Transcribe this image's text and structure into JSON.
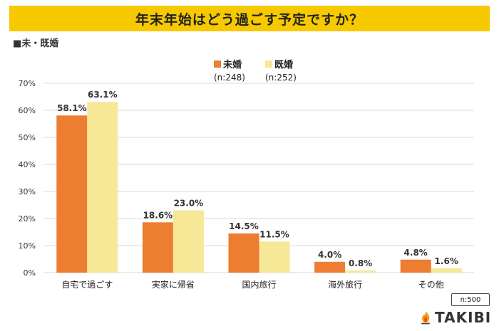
{
  "title": "年末年始はどう過ごす予定ですか？",
  "subtitle": "■未・既婚",
  "sample_note": "n:500",
  "brand": "TAKIBI",
  "colors": {
    "title_bg": "#f6c900",
    "series_unmarried": "#ed7d31",
    "series_married": "#f6e896",
    "grid": "#d9d9d9"
  },
  "chart_data": {
    "type": "bar",
    "categories": [
      "自宅で過ごす",
      "実家に帰省",
      "国内旅行",
      "海外旅行",
      "その他"
    ],
    "series": [
      {
        "name": "未婚",
        "n": "(n:248)",
        "values": [
          58.1,
          18.6,
          14.5,
          4.0,
          4.8
        ],
        "labels": [
          "58.1%",
          "18.6%",
          "14.5%",
          "4.0%",
          "4.8%"
        ]
      },
      {
        "name": "既婚",
        "n": "(n:252)",
        "values": [
          63.1,
          23.0,
          11.5,
          0.8,
          1.6
        ],
        "labels": [
          "63.1%",
          "23.0%",
          "11.5%",
          "0.8%",
          "1.6%"
        ]
      }
    ],
    "ylim": [
      0,
      70
    ],
    "yticks": [
      "0%",
      "10%",
      "20%",
      "30%",
      "40%",
      "50%",
      "60%",
      "70%"
    ],
    "grid": true,
    "legend_position": "top-center"
  }
}
